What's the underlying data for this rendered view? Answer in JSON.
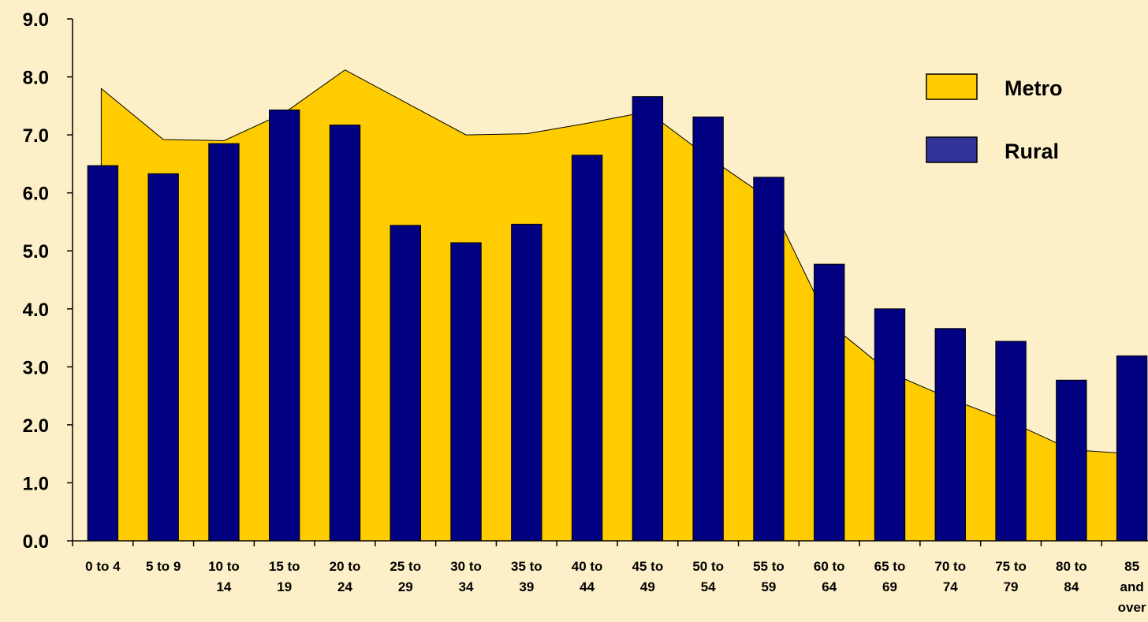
{
  "chart_data": {
    "type": "bar",
    "title": "",
    "xlabel": "",
    "ylabel": "",
    "ylim": [
      0,
      9
    ],
    "y_ticks": [
      "0.0",
      "1.0",
      "2.0",
      "3.0",
      "4.0",
      "5.0",
      "6.0",
      "7.0",
      "8.0",
      "9.0"
    ],
    "categories": [
      [
        "0 to 4"
      ],
      [
        "5 to 9"
      ],
      [
        "10 to",
        "14"
      ],
      [
        "15 to",
        "19"
      ],
      [
        "20 to",
        "24"
      ],
      [
        "25 to",
        "29"
      ],
      [
        "30 to",
        "34"
      ],
      [
        "35 to",
        "39"
      ],
      [
        "40 to",
        "44"
      ],
      [
        "45 to",
        "49"
      ],
      [
        "50 to",
        "54"
      ],
      [
        "55 to",
        "59"
      ],
      [
        "60 to",
        "64"
      ],
      [
        "65 to",
        "69"
      ],
      [
        "70 to",
        "74"
      ],
      [
        "75 to",
        "79"
      ],
      [
        "80 to",
        "84"
      ],
      [
        "85",
        "and",
        "over"
      ]
    ],
    "series": [
      {
        "name": "Metro",
        "type": "area",
        "color": "#ffcc00",
        "values": [
          7.8,
          6.92,
          6.9,
          7.38,
          8.12,
          7.56,
          7.0,
          7.02,
          7.2,
          7.4,
          6.62,
          5.9,
          3.75,
          2.9,
          2.45,
          2.05,
          1.57,
          1.5
        ]
      },
      {
        "name": "Rural",
        "type": "bar",
        "color": "#000080",
        "values": [
          6.47,
          6.33,
          6.85,
          7.43,
          7.17,
          5.44,
          5.14,
          5.46,
          6.65,
          7.66,
          7.31,
          6.27,
          4.77,
          4.0,
          3.66,
          3.44,
          2.77,
          3.19
        ]
      }
    ],
    "legend": {
      "position": "top-right",
      "items": [
        {
          "label": "Metro",
          "color": "#ffcc00"
        },
        {
          "label": "Rural",
          "color": "#333399"
        }
      ]
    },
    "grid": false
  }
}
